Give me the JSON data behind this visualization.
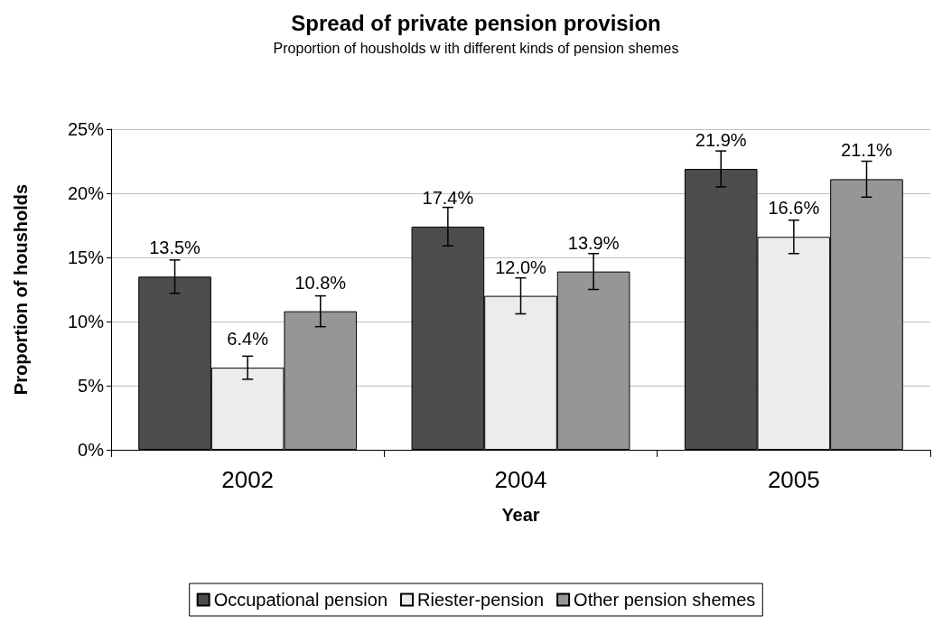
{
  "chart_data": {
    "type": "bar",
    "title": "Spread of private pension provision",
    "subtitle": "Proportion of housholds w ith different kinds of pension shemes",
    "xlabel": "Year",
    "ylabel": "Proportion of housholds",
    "categories": [
      "2002",
      "2004",
      "2005"
    ],
    "series": [
      {
        "name": "Occupational pension",
        "color": "#4d4d4d",
        "values": [
          13.5,
          17.4,
          21.9
        ],
        "errors": [
          1.3,
          1.5,
          1.4
        ],
        "value_labels": [
          "13.5%",
          "17.4%",
          "21.9%"
        ]
      },
      {
        "name": "Riester-pension",
        "color": "#ececec",
        "values": [
          6.4,
          12.0,
          16.6
        ],
        "errors": [
          0.9,
          1.4,
          1.3
        ],
        "value_labels": [
          "6.4%",
          "12.0%",
          "16.6%"
        ]
      },
      {
        "name": "Other pension shemes",
        "color": "#969696",
        "values": [
          10.8,
          13.9,
          21.1
        ],
        "errors": [
          1.2,
          1.4,
          1.4
        ],
        "value_labels": [
          "10.8%",
          "13.9%",
          "21.1%"
        ]
      }
    ],
    "ylim": [
      0,
      25
    ],
    "yticks": [
      {
        "value": 0,
        "label": "0%"
      },
      {
        "value": 5,
        "label": "5%"
      },
      {
        "value": 10,
        "label": "10%"
      },
      {
        "value": 15,
        "label": "15%"
      },
      {
        "value": 20,
        "label": "20%"
      },
      {
        "value": 25,
        "label": "25%"
      }
    ],
    "grid": "y",
    "legend": "bottom"
  }
}
